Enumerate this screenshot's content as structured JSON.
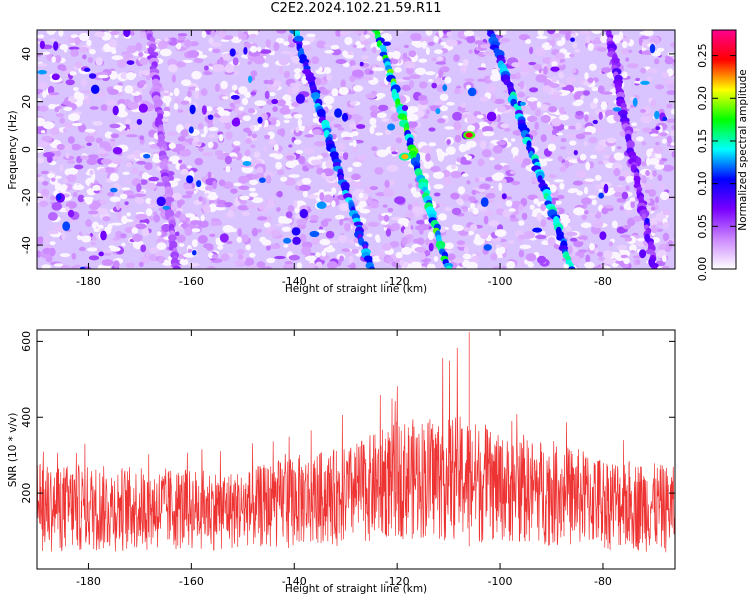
{
  "title": "C2E2.2024.102.21.59.R11",
  "chart_data": [
    {
      "type": "heatmap",
      "xlabel": "Height of straight line (km)",
      "ylabel": "Frequency (Hz)",
      "xlim": [
        -190,
        -66
      ],
      "ylim": [
        -50,
        50
      ],
      "xticks": [
        -180,
        -160,
        -140,
        -120,
        -100,
        -80
      ],
      "yticks": [
        -40,
        -20,
        0,
        20,
        40
      ],
      "colorbar": {
        "label": "Normalized spectral amplitude",
        "range": [
          0,
          0.28
        ],
        "ticks": [
          "0.00",
          "0.05",
          "0.10",
          "0.15",
          "0.20",
          "0.25"
        ],
        "colormap": [
          "#ffffff",
          "#cc88ff",
          "#7a00ff",
          "#0000ff",
          "#00ffff",
          "#00ff00",
          "#ffff00",
          "#ff0000",
          "#ff0090"
        ]
      },
      "streaks": [
        {
          "height_at_top": -140,
          "height_at_bottom": -125,
          "amplitude": 0.12
        },
        {
          "height_at_top": -124,
          "height_at_bottom": -110,
          "amplitude": 0.16
        },
        {
          "height_at_top": -102,
          "height_at_bottom": -86,
          "amplitude": 0.13
        },
        {
          "height_at_top": -79,
          "height_at_bottom": -70,
          "amplitude": 0.07
        },
        {
          "height_at_top": -168,
          "height_at_bottom": -163,
          "amplitude": 0.05
        }
      ],
      "hotspots": [
        {
          "height": -106,
          "frequency": 6,
          "amplitude": 0.26
        },
        {
          "height": -118.5,
          "frequency": -3,
          "amplitude": 0.22
        }
      ]
    },
    {
      "type": "line",
      "xlabel": "Height of straight line (km)",
      "ylabel": "SNR (10 * v/v)",
      "xlim": [
        -190,
        -66
      ],
      "ylim": [
        0,
        630
      ],
      "xticks": [
        -180,
        -160,
        -140,
        -120,
        -100,
        -80
      ],
      "yticks": [
        200,
        400,
        600
      ],
      "color": "#ee3333",
      "envelope": [
        {
          "x": -190,
          "low": 40,
          "high": 280,
          "peak": 330
        },
        {
          "x": -170,
          "low": 45,
          "high": 270,
          "peak": 400
        },
        {
          "x": -150,
          "low": 50,
          "high": 260,
          "peak": 330
        },
        {
          "x": -140,
          "low": 55,
          "high": 300,
          "peak": 360
        },
        {
          "x": -130,
          "low": 60,
          "high": 320,
          "peak": 420
        },
        {
          "x": -120,
          "low": 80,
          "high": 390,
          "peak": 540
        },
        {
          "x": -110,
          "low": 70,
          "high": 410,
          "peak": 560
        },
        {
          "x": -106,
          "low": 60,
          "high": 400,
          "peak": 625
        },
        {
          "x": -100,
          "low": 70,
          "high": 350,
          "peak": 460
        },
        {
          "x": -90,
          "low": 60,
          "high": 340,
          "peak": 480
        },
        {
          "x": -80,
          "low": 50,
          "high": 300,
          "peak": 360
        },
        {
          "x": -66,
          "low": 40,
          "high": 270,
          "peak": 330
        }
      ]
    }
  ]
}
